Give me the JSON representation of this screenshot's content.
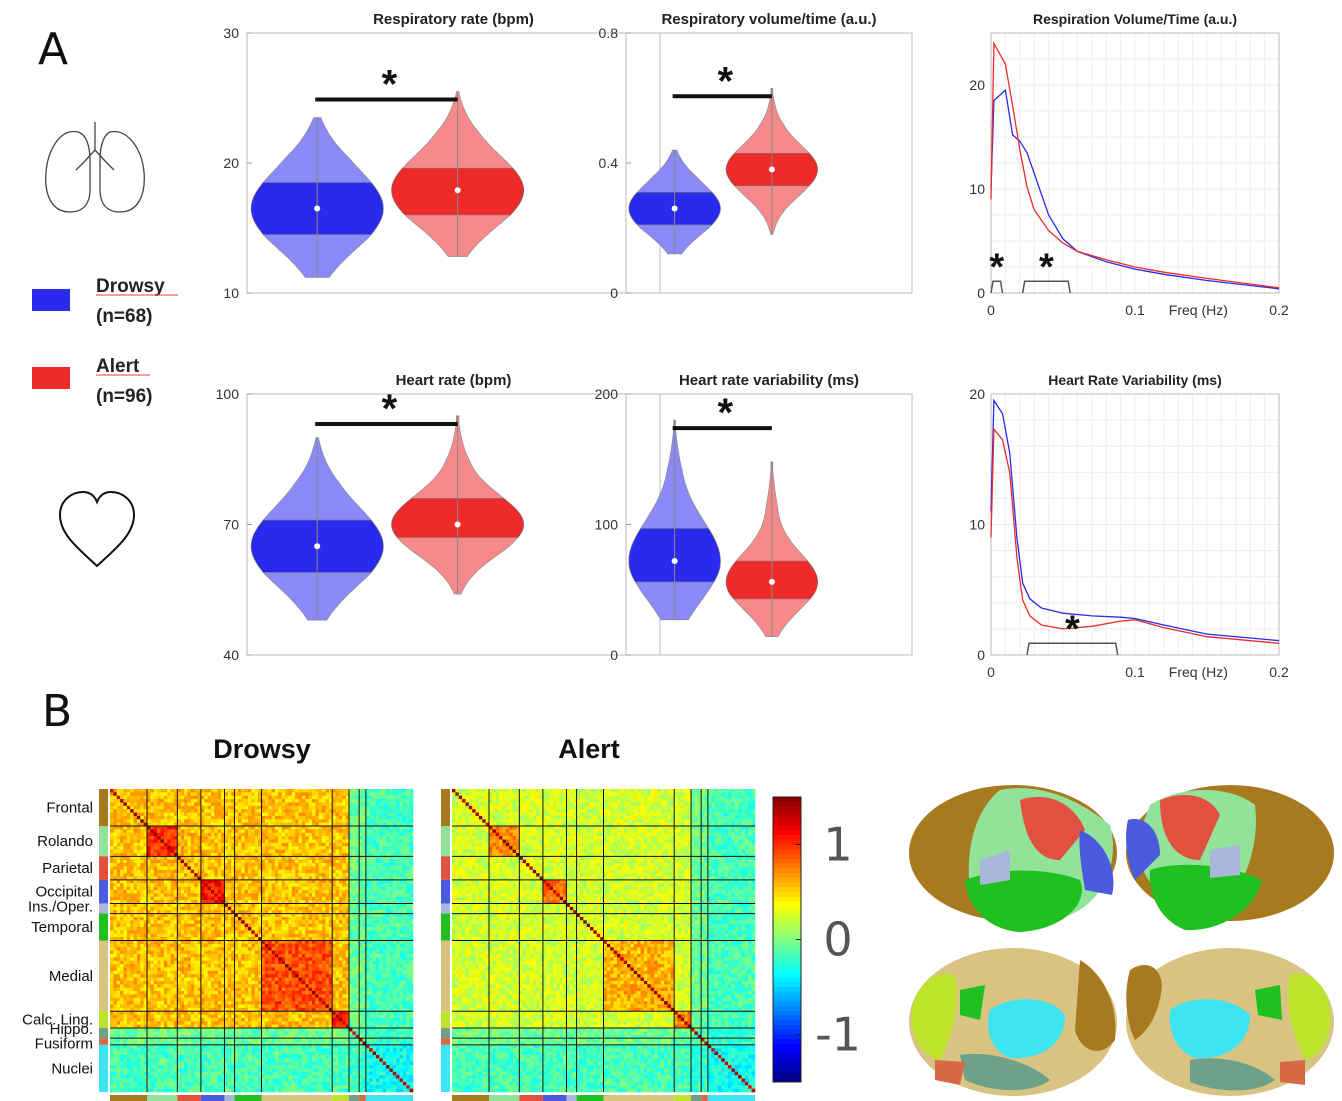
{
  "panel_labels": [
    "A",
    "B"
  ],
  "legend": {
    "items": [
      {
        "label": "Drowsy",
        "n": "(n=68)",
        "color": "#2a2aee"
      },
      {
        "label": "Alert",
        "n": "(n=96)",
        "color": "#ee2a2a"
      }
    ]
  },
  "significance_mark": "*",
  "icons": [
    "lungs-icon",
    "heart-icon"
  ],
  "chart_data": [
    {
      "type": "violin",
      "title": "Respiratory rate (bpm)",
      "ylim": [
        10,
        30
      ],
      "yticks": [
        "10",
        "20",
        "30"
      ],
      "series": [
        {
          "name": "Drowsy",
          "color": "#2a2aee",
          "median": 16.5,
          "q1": 14.5,
          "q3": 18.5,
          "min": 11.2,
          "max": 23.5
        },
        {
          "name": "Alert",
          "color": "#ee2a2a",
          "median": 17.9,
          "q1": 16.0,
          "q3": 19.6,
          "min": 12.8,
          "max": 25.5
        }
      ],
      "significant": true
    },
    {
      "type": "violin",
      "title": "Respiratory volume/time (a.u.)",
      "ylim": [
        0,
        0.8
      ],
      "yticks": [
        "0",
        "0.4",
        "0.8"
      ],
      "series": [
        {
          "name": "Drowsy",
          "color": "#2a2aee",
          "median": 0.26,
          "q1": 0.21,
          "q3": 0.31,
          "min": 0.12,
          "max": 0.44
        },
        {
          "name": "Alert",
          "color": "#ee2a2a",
          "median": 0.38,
          "q1": 0.33,
          "q3": 0.43,
          "min": 0.18,
          "max": 0.63
        }
      ],
      "significant": true
    },
    {
      "type": "line",
      "title": "Respiration Volume/Time (a.u.)",
      "xlabel": "Freq (Hz)",
      "xlim": [
        0,
        0.2
      ],
      "ylim": [
        0,
        25
      ],
      "xticks": [
        "0",
        "0.1",
        "0.2"
      ],
      "yticks": [
        "0",
        "10",
        "20"
      ],
      "series": [
        {
          "name": "Drowsy",
          "color": "#2a2aee",
          "x": [
            0,
            0.002,
            0.01,
            0.015,
            0.02,
            0.025,
            0.03,
            0.04,
            0.05,
            0.06,
            0.08,
            0.1,
            0.12,
            0.15,
            0.2
          ],
          "y": [
            10,
            18.5,
            19.5,
            15.2,
            14.6,
            13.5,
            11.5,
            7.5,
            5.2,
            4.0,
            3.0,
            2.3,
            1.8,
            1.2,
            0.4
          ]
        },
        {
          "name": "Alert",
          "color": "#ee2a2a",
          "x": [
            0,
            0.002,
            0.01,
            0.015,
            0.02,
            0.025,
            0.03,
            0.04,
            0.05,
            0.06,
            0.08,
            0.1,
            0.12,
            0.15,
            0.2
          ],
          "y": [
            9,
            24,
            22,
            18,
            13.8,
            10.2,
            8.0,
            6.0,
            4.8,
            4.0,
            3.2,
            2.5,
            2.0,
            1.4,
            0.5
          ]
        }
      ],
      "significance_ranges": [
        [
          0,
          0.008
        ],
        [
          0.022,
          0.055
        ]
      ]
    },
    {
      "type": "violin",
      "title": "Heart rate (bpm)",
      "ylim": [
        40,
        100
      ],
      "yticks": [
        "40",
        "70",
        "100"
      ],
      "series": [
        {
          "name": "Drowsy",
          "color": "#2a2aee",
          "median": 65,
          "q1": 59,
          "q3": 71,
          "min": 48,
          "max": 90
        },
        {
          "name": "Alert",
          "color": "#ee2a2a",
          "median": 70,
          "q1": 67,
          "q3": 76,
          "min": 54,
          "max": 95
        }
      ],
      "significant": true
    },
    {
      "type": "violin",
      "title": "Heart rate variability (ms)",
      "ylim": [
        0,
        200
      ],
      "yticks": [
        "0",
        "100",
        "200"
      ],
      "series": [
        {
          "name": "Drowsy",
          "color": "#2a2aee",
          "median": 72,
          "q1": 56,
          "q3": 97,
          "min": 27,
          "max": 180
        },
        {
          "name": "Alert",
          "color": "#ee2a2a",
          "median": 56,
          "q1": 43,
          "q3": 72,
          "min": 14,
          "max": 148
        }
      ],
      "significant": true
    },
    {
      "type": "line",
      "title": "Heart Rate Variability (ms)",
      "xlabel": "Freq (Hz)",
      "xlim": [
        0,
        0.2
      ],
      "ylim": [
        0,
        20
      ],
      "xticks": [
        "0",
        "0.1",
        "0.2"
      ],
      "yticks": [
        "0",
        "10",
        "20"
      ],
      "series": [
        {
          "name": "Drowsy",
          "color": "#2a2aee",
          "x": [
            0,
            0.002,
            0.008,
            0.013,
            0.018,
            0.022,
            0.027,
            0.035,
            0.05,
            0.07,
            0.09,
            0.1,
            0.12,
            0.15,
            0.2
          ],
          "y": [
            11,
            19.5,
            18.5,
            15.5,
            9.0,
            5.5,
            4.3,
            3.6,
            3.2,
            3.0,
            2.9,
            2.8,
            2.3,
            1.6,
            1.1
          ]
        },
        {
          "name": "Alert",
          "color": "#ee2a2a",
          "x": [
            0,
            0.002,
            0.008,
            0.013,
            0.018,
            0.022,
            0.027,
            0.035,
            0.05,
            0.07,
            0.09,
            0.1,
            0.12,
            0.15,
            0.2
          ],
          "y": [
            9,
            17.3,
            16.5,
            14.0,
            7.5,
            4.2,
            3.0,
            2.3,
            2.0,
            2.2,
            2.6,
            2.7,
            2.1,
            1.4,
            0.9
          ]
        }
      ],
      "significance_ranges": [
        [
          0.025,
          0.088
        ]
      ]
    },
    {
      "type": "heatmap",
      "title": "Drowsy",
      "groups": [
        "Frontal",
        "Rolando",
        "Parietal",
        "Occipital",
        "Ins./Oper.",
        "Temporal",
        "Medial",
        "Calc. Ling.",
        "Hippo.",
        "Fusiform",
        "Nuclei"
      ],
      "group_colors": [
        "#a87a1f",
        "#93e29a",
        "#e2513f",
        "#4a5be0",
        "#a9b7da",
        "#1fc01f",
        "#d8c382",
        "#bde32a",
        "#6fa089",
        "#d86a43",
        "#3fe4f2"
      ],
      "colorbar_range": [
        -1.5,
        1.5
      ]
    },
    {
      "type": "heatmap",
      "title": "Alert",
      "groups": [
        "Frontal",
        "Rolando",
        "Parietal",
        "Occipital",
        "Ins./Oper.",
        "Temporal",
        "Medial",
        "Calc. Ling.",
        "Hippo.",
        "Fusiform",
        "Nuclei"
      ],
      "group_colors": [
        "#a87a1f",
        "#93e29a",
        "#e2513f",
        "#4a5be0",
        "#a9b7da",
        "#1fc01f",
        "#d8c382",
        "#bde32a",
        "#6fa089",
        "#d86a43",
        "#3fe4f2"
      ],
      "colorbar_range": [
        -1.5,
        1.5
      ]
    },
    {
      "type": "colorbar",
      "ticks": [
        "1",
        "0",
        "-1"
      ],
      "tick_values": [
        1,
        0,
        -1
      ],
      "range": [
        -1.5,
        1.5
      ]
    }
  ],
  "brain_views": [
    "lateral-left",
    "lateral-right",
    "medial-left",
    "medial-right"
  ]
}
